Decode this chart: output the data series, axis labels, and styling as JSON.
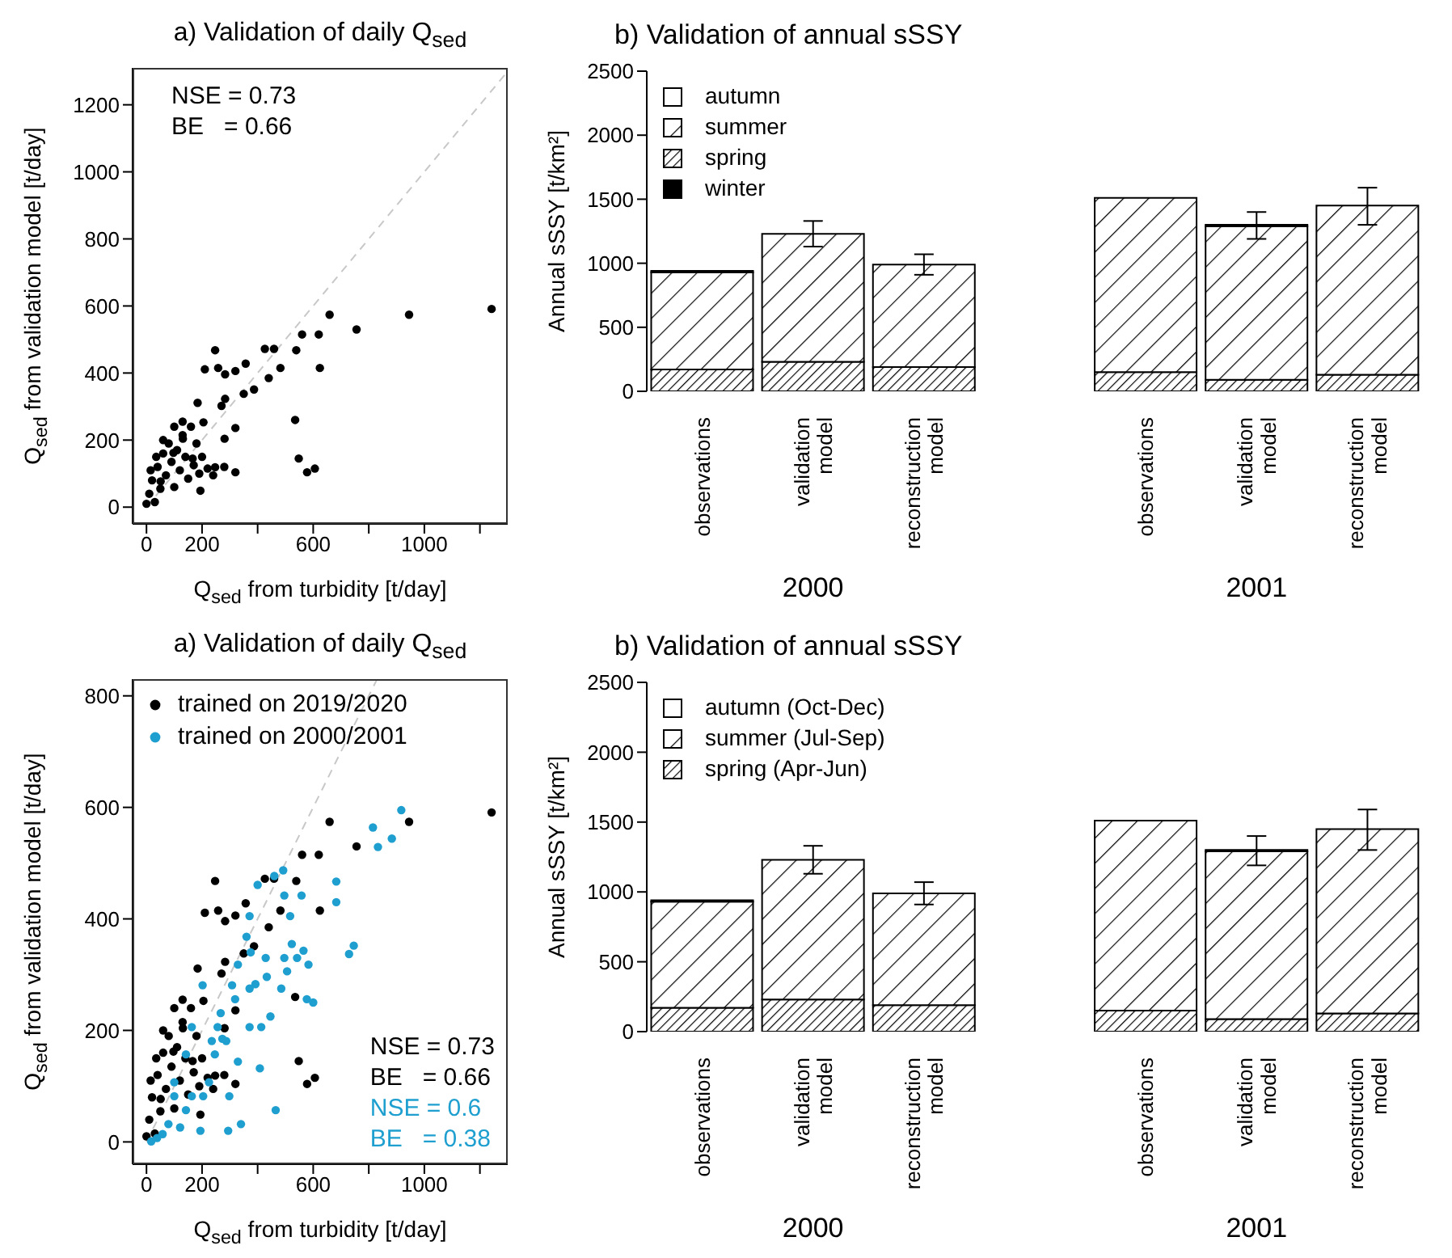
{
  "chart_data": [
    {
      "type": "scatter",
      "title": "a) Validation of daily Q$_{sed}$",
      "xlabel": "Q$_{sed}$ from turbidity [t/day]",
      "ylabel": "Q$_{sed}$ from validation model [t/day]",
      "xlim": [
        -50,
        1300
      ],
      "ylim": [
        -50,
        1310
      ],
      "xticks": [
        0,
        200,
        {
          "value": 400,
          "label": null
        },
        600,
        {
          "value": 800,
          "label": null
        },
        1000,
        {
          "value": 1200,
          "label": null
        }
      ],
      "yticks": [
        0,
        200,
        400,
        600,
        800,
        1000,
        1200
      ],
      "marker": "circle",
      "grid": false,
      "legend": false,
      "annotations": [
        "NSE = 0.73",
        "BE   = 0.66"
      ],
      "series": [
        {
          "type": "line",
          "color": "#c8c8c8",
          "line_style": "dashed",
          "marker": "none",
          "x": [
            0,
            1300
          ],
          "values": [
            0,
            1300
          ]
        },
        {
          "color": "#000000",
          "x": [
            1242,
            945,
            756,
            659,
            620,
            560,
            539,
            624,
            426,
            459,
            482,
            440,
            357,
            387,
            350,
            320,
            283,
            258,
            247,
            210,
            283,
            270,
            320,
            281,
            205,
            184,
            535,
            548,
            578,
            606,
            320,
            247,
            194,
            166,
            131,
            97,
            51,
            0,
            10,
            20,
            30,
            40,
            50,
            60,
            70,
            80,
            90,
            100,
            110,
            120,
            130,
            140,
            150,
            160,
            170,
            180,
            190,
            200,
            220,
            240,
            280,
            60,
            35,
            15,
            100,
            130
          ],
          "values": [
            591,
            574,
            530,
            574,
            515,
            515,
            468,
            415,
            472,
            472,
            415,
            385,
            428,
            351,
            338,
            406,
            396,
            415,
            468,
            411,
            323,
            302,
            236,
            204,
            253,
            311,
            260,
            145,
            104,
            115,
            104,
            119,
            49,
            145,
            204,
            162,
            77,
            10,
            40,
            80,
            15,
            120,
            55,
            160,
            95,
            190,
            135,
            60,
            170,
            110,
            215,
            150,
            85,
            240,
            125,
            190,
            100,
            150,
            115,
            95,
            120,
            200,
            150,
            110,
            240,
            255
          ]
        }
      ]
    },
    {
      "type": "bar",
      "title": "b) Validation of annual sSSY",
      "ylabel": "Annual sSSY [t/km²]",
      "categories": [
        "observations",
        "validation model",
        "reconstruction model",
        "observations",
        "validation model",
        "reconstruction model"
      ],
      "stacked": true,
      "ylim": [
        0,
        2500
      ],
      "yticks": [
        0,
        500,
        1000,
        1500,
        2000,
        2500
      ],
      "legend": "top left",
      "annotations": [
        "2000",
        "2001"
      ],
      "series": [
        {
          "name": "winter",
          "color": "#000000",
          "values": [
            0,
            0,
            0,
            0,
            0,
            0
          ]
        },
        {
          "name": "spring",
          "color": "#000000",
          "values": [
            170,
            230,
            190,
            150,
            90,
            130
          ]
        },
        {
          "name": "summer",
          "color": "#000000",
          "values": [
            760,
            1000,
            800,
            1360,
            1200,
            1320
          ],
          "errors": [
            null,
            [
              1130,
              1330
            ],
            [
              910,
              1070
            ],
            null,
            [
              1190,
              1400
            ],
            [
              1300,
              1590
            ]
          ]
        },
        {
          "name": "autumn",
          "color": "#ffffff",
          "values": [
            10,
            0,
            0,
            0,
            10,
            0
          ]
        }
      ]
    },
    {
      "type": "scatter",
      "title": "a) Validation of daily Q$_{sed}$",
      "xlabel": "Q$_{sed}$ from turbidity [t/day]",
      "ylabel": "Q$_{sed}$ from validation model [t/day]",
      "xlim": [
        -50,
        1300
      ],
      "ylim": [
        -40,
        830
      ],
      "xticks": [
        0,
        200,
        {
          "value": 400,
          "label": null
        },
        600,
        {
          "value": 800,
          "label": null
        },
        1000,
        {
          "value": 1200,
          "label": null
        }
      ],
      "yticks": [
        0,
        200,
        400,
        600,
        800
      ],
      "marker": "circle",
      "grid": false,
      "legend": "top left",
      "annotations": [
        "NSE = 0.73",
        "BE   = 0.66",
        "NSE = 0.6",
        "BE   = 0.38"
      ],
      "series": [
        {
          "type": "line",
          "color": "#c8c8c8",
          "line_style": "dashed",
          "marker": "none",
          "x": [
            0,
            830
          ],
          "values": [
            0,
            830
          ]
        },
        {
          "name": "trained on 2019/2020",
          "color": "#000000",
          "x": [
            1242,
            945,
            756,
            659,
            620,
            560,
            539,
            624,
            426,
            459,
            482,
            440,
            357,
            387,
            350,
            320,
            283,
            258,
            247,
            210,
            283,
            270,
            320,
            281,
            205,
            184,
            535,
            548,
            578,
            606,
            320,
            247,
            194,
            166,
            131,
            97,
            51,
            0,
            10,
            20,
            30,
            40,
            50,
            60,
            70,
            80,
            90,
            100,
            110,
            120,
            130,
            140,
            150,
            160,
            170,
            180,
            190,
            200,
            220,
            240,
            280,
            60,
            35,
            15,
            100,
            130
          ],
          "values": [
            591,
            574,
            530,
            574,
            515,
            515,
            468,
            415,
            472,
            472,
            415,
            385,
            428,
            351,
            338,
            406,
            396,
            415,
            468,
            411,
            323,
            302,
            236,
            204,
            253,
            311,
            260,
            145,
            104,
            115,
            104,
            119,
            49,
            145,
            204,
            162,
            77,
            10,
            40,
            80,
            15,
            120,
            55,
            160,
            95,
            190,
            135,
            60,
            170,
            110,
            215,
            150,
            85,
            240,
            125,
            190,
            100,
            150,
            115,
            95,
            120,
            200,
            150,
            110,
            240,
            255
          ]
        },
        {
          "name": "trained on 2000/2001",
          "color": "#1e9fcf",
          "x": [
            917,
            815,
            833,
            883,
            746,
            729,
            683,
            683,
            492,
            460,
            400,
            371,
            360,
            375,
            496,
            517,
            558,
            523,
            542,
            565,
            583,
            577,
            600,
            496,
            506,
            429,
            433,
            485,
            392,
            371,
            329,
            308,
            319,
            267,
            287,
            413,
            446,
            371,
            408,
            465,
            329,
            298,
            294,
            340,
            246,
            225,
            204,
            194,
            163,
            142,
            121,
            100,
            79,
            58,
            38,
            17,
            202,
            163,
            142,
            100,
            235,
            273,
            256
          ],
          "values": [
            595,
            564,
            529,
            544,
            352,
            337,
            467,
            430,
            487,
            477,
            461,
            405,
            368,
            340,
            442,
            405,
            442,
            355,
            330,
            343,
            318,
            256,
            250,
            330,
            306,
            330,
            296,
            275,
            283,
            275,
            318,
            281,
            256,
            231,
            181,
            206,
            225,
            206,
            132,
            57,
            144,
            82,
            20,
            32,
            157,
            107,
            82,
            20,
            82,
            57,
            26,
            82,
            32,
            14,
            7,
            1,
            281,
            206,
            157,
            107,
            181,
            185,
            206
          ]
        }
      ]
    },
    {
      "type": "bar",
      "title": "b) Validation of annual sSSY",
      "ylabel": "Annual sSSY [t/km²]",
      "categories": [
        "observations",
        "validation model",
        "reconstruction model",
        "observations",
        "validation model",
        "reconstruction model"
      ],
      "stacked": true,
      "ylim": [
        0,
        2500
      ],
      "yticks": [
        0,
        500,
        1000,
        1500,
        2000,
        2500
      ],
      "legend": "top left",
      "annotations": [
        "2000",
        "2001"
      ],
      "series": [
        {
          "name": "spring (Apr-Jun)",
          "color": "#000000",
          "values": [
            170,
            230,
            190,
            150,
            90,
            130
          ]
        },
        {
          "name": "summer (Jul-Sep)",
          "color": "#000000",
          "values": [
            760,
            1000,
            800,
            1360,
            1200,
            1320
          ],
          "errors": [
            null,
            [
              1130,
              1330
            ],
            [
              910,
              1070
            ],
            null,
            [
              1190,
              1400
            ],
            [
              1300,
              1590
            ]
          ]
        },
        {
          "name": "autumn (Oct-Dec)",
          "color": "#ffffff",
          "values": [
            10,
            0,
            0,
            0,
            10,
            0
          ]
        }
      ]
    }
  ]
}
